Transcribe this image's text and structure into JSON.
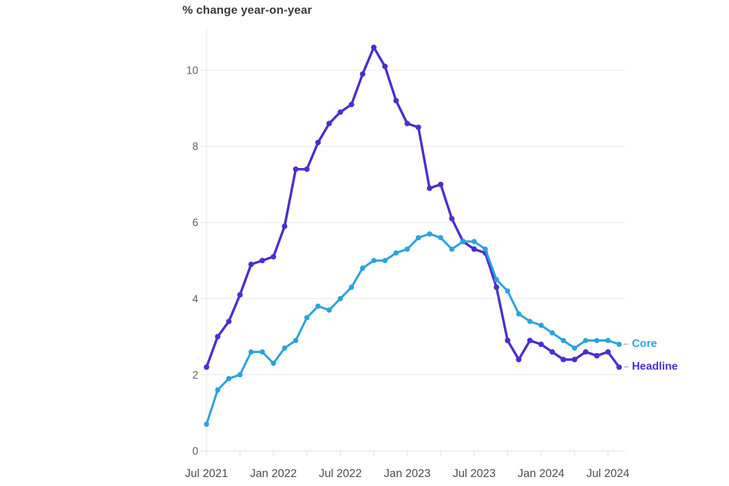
{
  "page": {
    "title": "% change year-on-year"
  },
  "chart_data": {
    "type": "line",
    "title": "% change year-on-year",
    "xlabel": "",
    "ylabel": "% change year-on-year",
    "ylim": [
      0,
      11.1
    ],
    "y_ticks": [
      0,
      2,
      4,
      6,
      8,
      10
    ],
    "grid": "horizontal",
    "legend_position": "right-of-line-ends",
    "x": [
      "Jul 2021",
      "Aug 2021",
      "Sep 2021",
      "Oct 2021",
      "Nov 2021",
      "Dec 2021",
      "Jan 2022",
      "Feb 2022",
      "Mar 2022",
      "Apr 2022",
      "May 2022",
      "Jun 2022",
      "Jul 2022",
      "Aug 2022",
      "Sep 2022",
      "Oct 2022",
      "Nov 2022",
      "Dec 2022",
      "Jan 2023",
      "Feb 2023",
      "Mar 2023",
      "Apr 2023",
      "May 2023",
      "Jun 2023",
      "Jul 2023",
      "Aug 2023",
      "Sep 2023",
      "Oct 2023",
      "Nov 2023",
      "Dec 2023",
      "Jan 2024",
      "Feb 2024",
      "Mar 2024",
      "Apr 2024",
      "May 2024",
      "Jun 2024",
      "Jul 2024",
      "Aug 2024"
    ],
    "x_tick_labels": [
      "Jul 2021",
      "Jan 2022",
      "Jul 2022",
      "Jan 2023",
      "Jul 2023",
      "Jan 2024",
      "Jul 2024"
    ],
    "x_tick_label_indices": [
      0,
      6,
      12,
      18,
      24,
      30,
      36
    ],
    "x_minor_tick_months": 3,
    "series": [
      {
        "name": "Core",
        "color": "#2ba3dd",
        "values": [
          0.7,
          1.6,
          1.9,
          2.0,
          2.6,
          2.6,
          2.3,
          2.7,
          2.9,
          3.5,
          3.8,
          3.7,
          4.0,
          4.3,
          4.8,
          5.0,
          5.0,
          5.2,
          5.3,
          5.6,
          5.7,
          5.6,
          5.3,
          5.5,
          5.5,
          5.3,
          4.5,
          4.2,
          3.6,
          3.4,
          3.3,
          3.1,
          2.9,
          2.7,
          2.9,
          2.9,
          2.9,
          2.8
        ]
      },
      {
        "name": "Headline",
        "color": "#4631d1",
        "values": [
          2.2,
          3.0,
          3.4,
          4.1,
          4.9,
          5.0,
          5.1,
          5.9,
          7.4,
          7.4,
          8.1,
          8.6,
          8.9,
          9.1,
          9.9,
          10.6,
          10.1,
          9.2,
          8.6,
          8.5,
          6.9,
          7.0,
          6.1,
          5.5,
          5.3,
          5.2,
          4.3,
          2.9,
          2.4,
          2.9,
          2.8,
          2.6,
          2.4,
          2.4,
          2.6,
          2.5,
          2.6,
          2.2
        ]
      }
    ],
    "style": {
      "grid_color": "#e6e6e6",
      "axis_color": "#dcdcdc",
      "y_tick_text_color": "#606060",
      "x_tick_text_color": "#4d4d4d"
    }
  }
}
